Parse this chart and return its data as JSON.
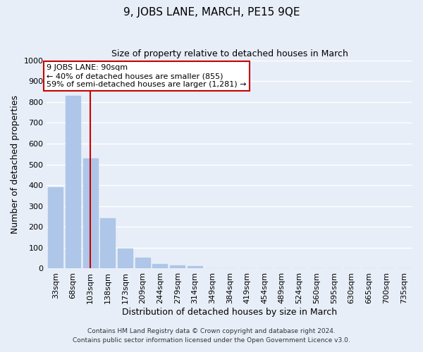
{
  "title": "9, JOBS LANE, MARCH, PE15 9QE",
  "subtitle": "Size of property relative to detached houses in March",
  "xlabel": "Distribution of detached houses by size in March",
  "ylabel": "Number of detached properties",
  "bar_labels": [
    "33sqm",
    "68sqm",
    "103sqm",
    "138sqm",
    "173sqm",
    "209sqm",
    "244sqm",
    "279sqm",
    "314sqm",
    "349sqm",
    "384sqm",
    "419sqm",
    "454sqm",
    "489sqm",
    "524sqm",
    "560sqm",
    "595sqm",
    "630sqm",
    "665sqm",
    "700sqm",
    "735sqm"
  ],
  "bar_values": [
    390,
    830,
    530,
    240,
    97,
    52,
    22,
    15,
    10,
    0,
    0,
    0,
    0,
    0,
    0,
    0,
    0,
    0,
    0,
    0,
    0
  ],
  "bar_color": "#aec6e8",
  "bar_edgecolor": "#aec6e8",
  "reference_line_x": 2,
  "reference_line_color": "#cc0000",
  "ylim": [
    0,
    1000
  ],
  "yticks": [
    0,
    100,
    200,
    300,
    400,
    500,
    600,
    700,
    800,
    900,
    1000
  ],
  "annotation_text": "9 JOBS LANE: 90sqm\n← 40% of detached houses are smaller (855)\n59% of semi-detached houses are larger (1,281) →",
  "annotation_box_facecolor": "#ffffff",
  "annotation_box_edgecolor": "#cc0000",
  "footer_line1": "Contains HM Land Registry data © Crown copyright and database right 2024.",
  "footer_line2": "Contains public sector information licensed under the Open Government Licence v3.0.",
  "background_color": "#e8eef8",
  "grid_color": "#ffffff"
}
